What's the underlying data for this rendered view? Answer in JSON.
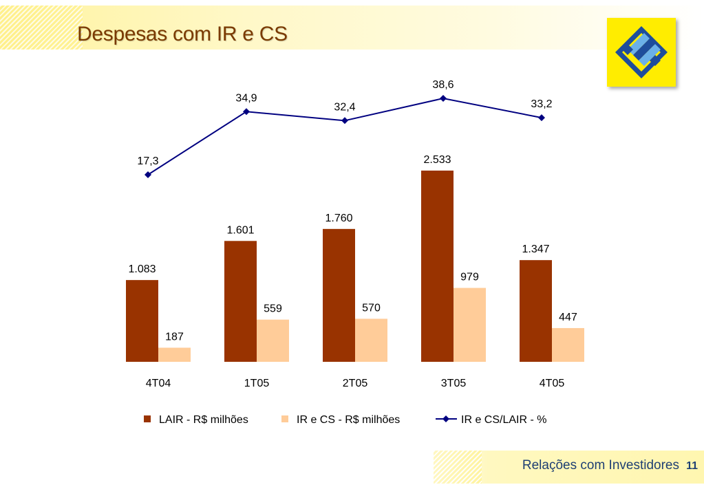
{
  "page": {
    "title": "Despesas com IR e CS",
    "footer_text": "Relações com Investidores",
    "page_number": "11"
  },
  "logo": {
    "name": "bank-logo",
    "colors": [
      "#ffed00",
      "#1e4d9b",
      "#6bb0e8"
    ]
  },
  "colors": {
    "lair": "#993300",
    "ircs": "#ffcc99",
    "ratio": "#000080",
    "title": "#7a3a00",
    "footer_text": "#1e3f73"
  },
  "chart_data": {
    "type": "bar",
    "categories": [
      "4T04",
      "1T05",
      "2T05",
      "3T05",
      "4T05"
    ],
    "series": [
      {
        "name": "LAIR - R$ milhões",
        "kind": "bar",
        "values": [
          1083,
          1601,
          1760,
          2533,
          1347
        ],
        "labels": [
          "1.083",
          "1.601",
          "1.760",
          "2.533",
          "1.347"
        ],
        "color": "#993300"
      },
      {
        "name": "IR e CS - R$ milhões",
        "kind": "bar",
        "values": [
          187,
          559,
          570,
          979,
          447
        ],
        "labels": [
          "187",
          "559",
          "570",
          "979",
          "447"
        ],
        "color": "#ffcc99"
      },
      {
        "name": "IR e CS/LAIR - %",
        "kind": "line",
        "values": [
          17.3,
          34.9,
          32.4,
          38.6,
          33.2
        ],
        "labels": [
          "17,3",
          "34,9",
          "32,4",
          "38,6",
          "33,2"
        ],
        "color": "#000080",
        "marker": "diamond"
      }
    ],
    "title": "",
    "xlabel": "",
    "ylabel": "",
    "ylim": [
      0,
      2533
    ],
    "grid": false,
    "legend": "bottom"
  }
}
